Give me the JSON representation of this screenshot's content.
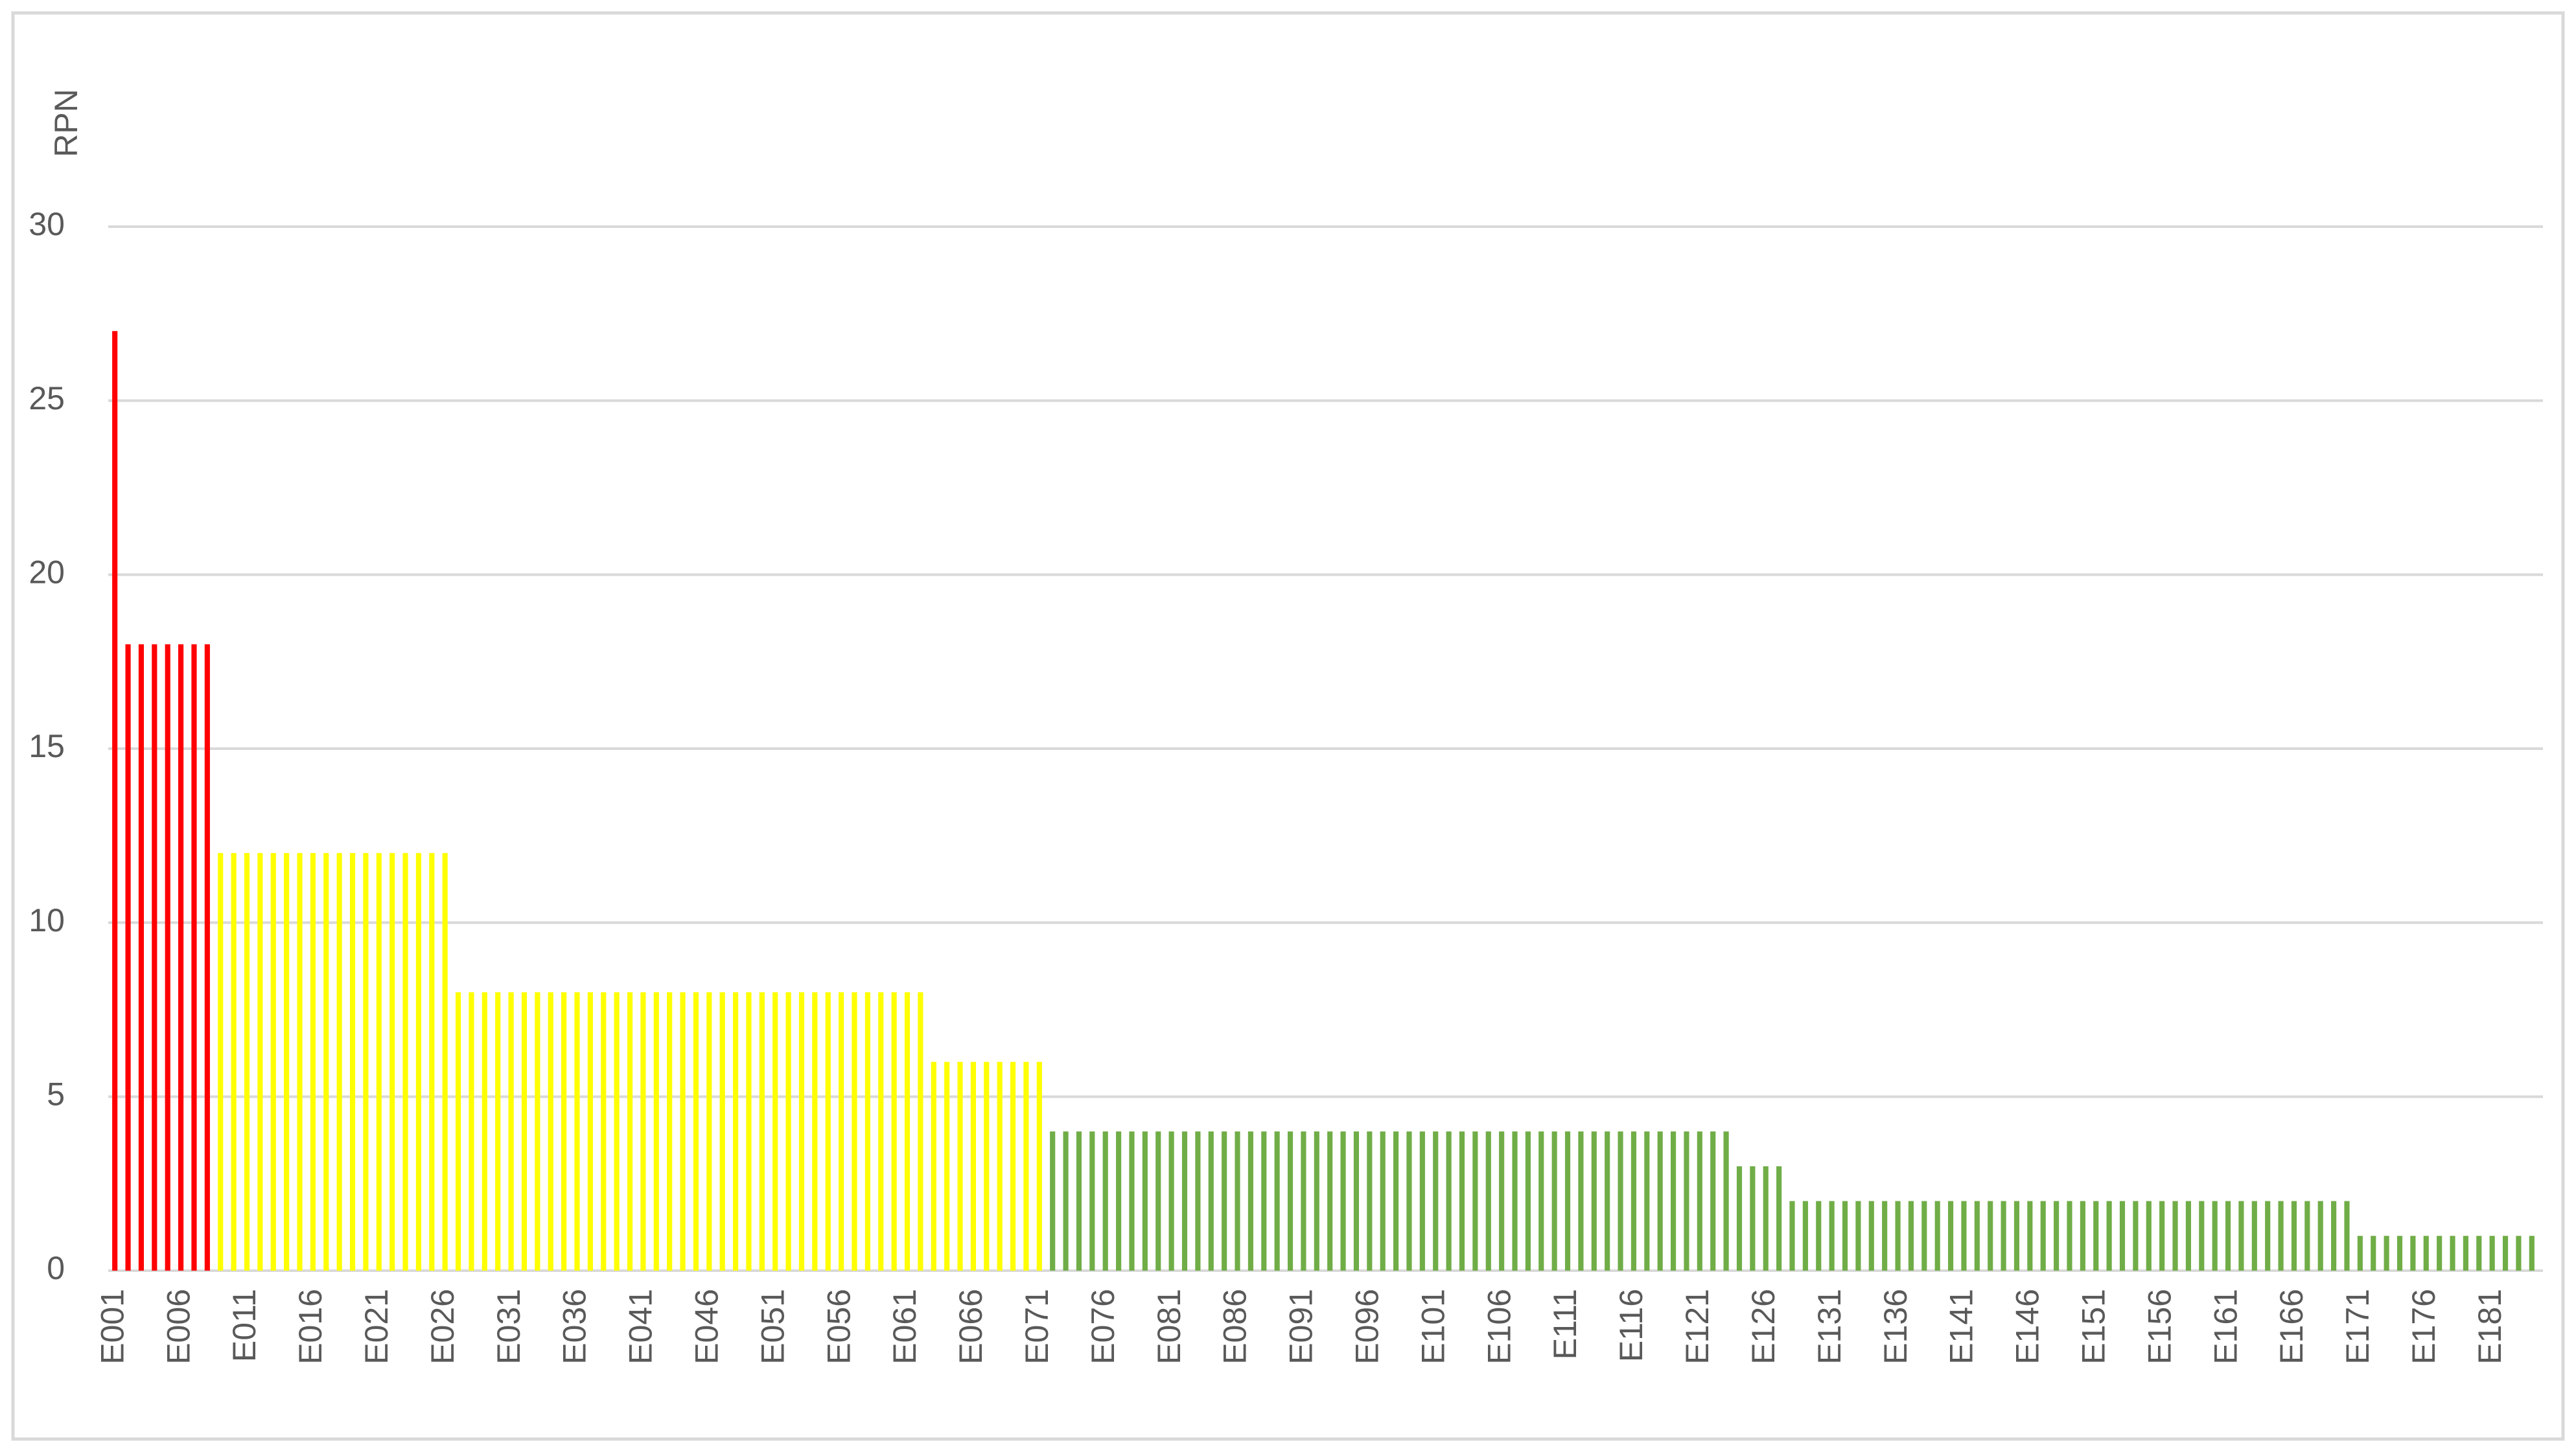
{
  "chart_data": {
    "type": "bar",
    "y_label": "RPN",
    "categories": [
      "E001",
      null,
      null,
      null,
      null,
      "E006",
      null,
      null,
      null,
      null,
      "E011",
      null,
      null,
      null,
      null,
      "E016",
      null,
      null,
      null,
      null,
      "E021",
      null,
      null,
      null,
      null,
      "E026",
      null,
      null,
      null,
      null,
      "E031",
      null,
      null,
      null,
      null,
      "E036",
      null,
      null,
      null,
      null,
      "E041",
      null,
      null,
      null,
      null,
      "E046",
      null,
      null,
      null,
      null,
      "E051",
      null,
      null,
      null,
      null,
      "E056",
      null,
      null,
      null,
      null,
      "E061",
      null,
      null,
      null,
      null,
      "E066",
      null,
      null,
      null,
      null,
      "E071",
      null,
      null,
      null,
      null,
      "E076",
      null,
      null,
      null,
      null,
      "E081",
      null,
      null,
      null,
      null,
      "E086",
      null,
      null,
      null,
      null,
      "E091",
      null,
      null,
      null,
      null,
      "E096",
      null,
      null,
      null,
      null,
      "E101",
      null,
      null,
      null,
      null,
      "E106",
      null,
      null,
      null,
      null,
      "E111",
      null,
      null,
      null,
      null,
      "E116",
      null,
      null,
      null,
      null,
      "E121",
      null,
      null,
      null,
      null,
      "E126",
      null,
      null,
      null,
      null,
      "E131",
      null,
      null,
      null,
      null,
      "E136",
      null,
      null,
      null,
      null,
      "E141",
      null,
      null,
      null,
      null,
      "E146",
      null,
      null,
      null,
      null,
      "E151",
      null,
      null,
      null,
      null,
      "E156",
      null,
      null,
      null,
      null,
      "E161",
      null,
      null,
      null,
      null,
      "E166",
      null,
      null,
      null,
      null,
      "E171",
      null,
      null,
      null,
      null,
      "E176",
      null,
      null,
      null,
      null,
      "E181",
      null,
      null,
      null
    ],
    "values": [
      27,
      18,
      18,
      18,
      18,
      18,
      18,
      18,
      12,
      12,
      12,
      12,
      12,
      12,
      12,
      12,
      12,
      12,
      12,
      12,
      12,
      12,
      12,
      12,
      12,
      12,
      8,
      8,
      8,
      8,
      8,
      8,
      8,
      8,
      8,
      8,
      8,
      8,
      8,
      8,
      8,
      8,
      8,
      8,
      8,
      8,
      8,
      8,
      8,
      8,
      8,
      8,
      8,
      8,
      8,
      8,
      8,
      8,
      8,
      8,
      8,
      8,
      6,
      6,
      6,
      6,
      6,
      6,
      6,
      6,
      6,
      4,
      4,
      4,
      4,
      4,
      4,
      4,
      4,
      4,
      4,
      4,
      4,
      4,
      4,
      4,
      4,
      4,
      4,
      4,
      4,
      4,
      4,
      4,
      4,
      4,
      4,
      4,
      4,
      4,
      4,
      4,
      4,
      4,
      4,
      4,
      4,
      4,
      4,
      4,
      4,
      4,
      4,
      4,
      4,
      4,
      4,
      4,
      4,
      4,
      4,
      4,
      4,
      3,
      3,
      3,
      3,
      2,
      2,
      2,
      2,
      2,
      2,
      2,
      2,
      2,
      2,
      2,
      2,
      2,
      2,
      2,
      2,
      2,
      2,
      2,
      2,
      2,
      2,
      2,
      2,
      2,
      2,
      2,
      2,
      2,
      2,
      2,
      2,
      2,
      2,
      2,
      2,
      2,
      2,
      2,
      2,
      2,
      2,
      2,
      1,
      1,
      1,
      1,
      1,
      1,
      1,
      1,
      1,
      1,
      1,
      1,
      1,
      1
    ],
    "colors": [
      "#f00",
      "#f00",
      "#f00",
      "#f00",
      "#f00",
      "#f00",
      "#f00",
      "#f00",
      "#ff0",
      "#ff0",
      "#ff0",
      "#ff0",
      "#ff0",
      "#ff0",
      "#ff0",
      "#ff0",
      "#ff0",
      "#ff0",
      "#ff0",
      "#ff0",
      "#ff0",
      "#ff0",
      "#ff0",
      "#ff0",
      "#ff0",
      "#ff0",
      "#ff0",
      "#ff0",
      "#ff0",
      "#ff0",
      "#ff0",
      "#ff0",
      "#ff0",
      "#ff0",
      "#ff0",
      "#ff0",
      "#ff0",
      "#ff0",
      "#ff0",
      "#ff0",
      "#ff0",
      "#ff0",
      "#ff0",
      "#ff0",
      "#ff0",
      "#ff0",
      "#ff0",
      "#ff0",
      "#ff0",
      "#ff0",
      "#ff0",
      "#ff0",
      "#ff0",
      "#ff0",
      "#ff0",
      "#ff0",
      "#ff0",
      "#ff0",
      "#ff0",
      "#ff0",
      "#ff0",
      "#ff0",
      "#ff0",
      "#ff0",
      "#ff0",
      "#ff0",
      "#ff0",
      "#ff0",
      "#ff0",
      "#ff0",
      "#ff0",
      "#70ad47",
      "#70ad47",
      "#70ad47",
      "#70ad47",
      "#70ad47",
      "#70ad47",
      "#70ad47",
      "#70ad47",
      "#70ad47",
      "#70ad47",
      "#70ad47",
      "#70ad47",
      "#70ad47",
      "#70ad47",
      "#70ad47",
      "#70ad47",
      "#70ad47",
      "#70ad47",
      "#70ad47",
      "#70ad47",
      "#70ad47",
      "#70ad47",
      "#70ad47",
      "#70ad47",
      "#70ad47",
      "#70ad47",
      "#70ad47",
      "#70ad47",
      "#70ad47",
      "#70ad47",
      "#70ad47",
      "#70ad47",
      "#70ad47",
      "#70ad47",
      "#70ad47",
      "#70ad47",
      "#70ad47",
      "#70ad47",
      "#70ad47",
      "#70ad47",
      "#70ad47",
      "#70ad47",
      "#70ad47",
      "#70ad47",
      "#70ad47",
      "#70ad47",
      "#70ad47",
      "#70ad47",
      "#70ad47",
      "#70ad47",
      "#70ad47",
      "#70ad47",
      "#70ad47",
      "#70ad47",
      "#70ad47",
      "#70ad47",
      "#70ad47",
      "#70ad47",
      "#70ad47",
      "#70ad47",
      "#70ad47",
      "#70ad47",
      "#70ad47",
      "#70ad47",
      "#70ad47",
      "#70ad47",
      "#70ad47",
      "#70ad47",
      "#70ad47",
      "#70ad47",
      "#70ad47",
      "#70ad47",
      "#70ad47",
      "#70ad47",
      "#70ad47",
      "#70ad47",
      "#70ad47",
      "#70ad47",
      "#70ad47",
      "#70ad47",
      "#70ad47",
      "#70ad47",
      "#70ad47",
      "#70ad47",
      "#70ad47",
      "#70ad47",
      "#70ad47",
      "#70ad47",
      "#70ad47",
      "#70ad47",
      "#70ad47",
      "#70ad47",
      "#70ad47",
      "#70ad47",
      "#70ad47",
      "#70ad47",
      "#70ad47",
      "#70ad47",
      "#70ad47",
      "#70ad47",
      "#70ad47",
      "#70ad47",
      "#70ad47",
      "#70ad47",
      "#70ad47",
      "#70ad47",
      "#70ad47",
      "#70ad47",
      "#70ad47",
      "#70ad47",
      "#70ad47",
      "#70ad47",
      "#70ad47"
    ],
    "ylim": [
      0,
      30
    ],
    "yticks": [
      0,
      5,
      10,
      15,
      20,
      25,
      30
    ],
    "grid": true
  }
}
